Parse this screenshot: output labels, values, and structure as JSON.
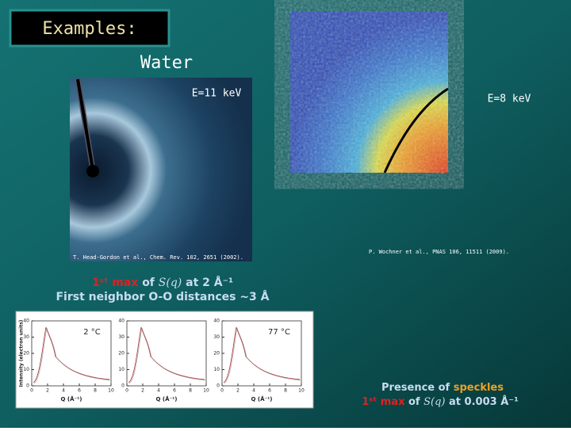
{
  "header": {
    "title": "Examples:",
    "subtitle": "Water"
  },
  "images": [
    {
      "label": "E=11 keV",
      "citation": "T. Head-Gordon et al., Chem. Rev. 102, 2651 (2002)."
    },
    {
      "label": "E=8 keV",
      "citation": "P. Wochner et al., PNAS 106, 11511 (2009)."
    }
  ],
  "caption_left": {
    "highlight": "1ˢᵗ max",
    "text": "of",
    "function": "S(q)",
    "rest": "at 2 Å⁻¹",
    "line2": "First neighbor O-O distances ~3 Å"
  },
  "caption_right": {
    "text": "Presence of",
    "highlight": "speckles",
    "line2": {
      "highlight": "1ˢᵗ max",
      "text": "of",
      "function": "S(q)",
      "rest": "at 0.003 Å⁻¹"
    }
  },
  "plots": {
    "ylabel": "Intensity (electron units)",
    "xlabel": "Q (Å⁻¹)",
    "xticks": [
      0,
      2,
      4,
      6,
      8,
      10
    ],
    "yticks": [
      0,
      10,
      20,
      30,
      40
    ],
    "temperature_labels": [
      "2 °C",
      "77 °C"
    ]
  }
}
